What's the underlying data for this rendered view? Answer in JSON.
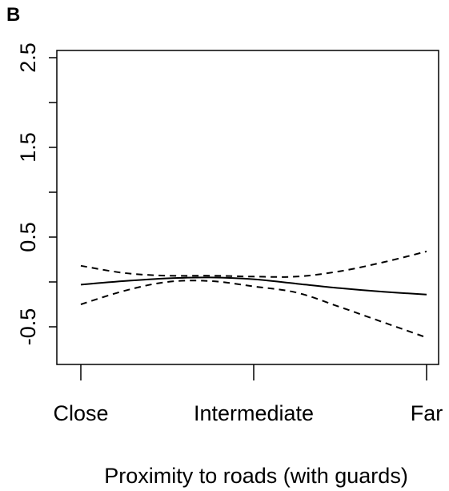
{
  "panel_label": "B",
  "chart_data": {
    "type": "line",
    "title": "",
    "xlabel": "Proximity to roads (with guards)",
    "ylabel": "",
    "xlim": [
      0,
      2
    ],
    "ylim": [
      -1,
      2.5
    ],
    "grid": false,
    "x_ticks": [
      {
        "value": 0,
        "label": "Close"
      },
      {
        "value": 1,
        "label": "Intermediate"
      },
      {
        "value": 2,
        "label": "Far"
      }
    ],
    "y_ticks": [
      {
        "value": -0.5,
        "label": "-0.5"
      },
      {
        "value": 0,
        "label": ""
      },
      {
        "value": 0.5,
        "label": "0.5"
      },
      {
        "value": 1,
        "label": ""
      },
      {
        "value": 1.5,
        "label": "1.5"
      },
      {
        "value": 2,
        "label": ""
      },
      {
        "value": 2.5,
        "label": "2.5"
      }
    ],
    "series": [
      {
        "style": "solid",
        "x": [
          0,
          0.25,
          0.5,
          0.75,
          1,
          1.25,
          1.5,
          1.75,
          2
        ],
        "y": [
          -0.03,
          0.01,
          0.04,
          0.05,
          0.03,
          -0.02,
          -0.07,
          -0.11,
          -0.14
        ]
      },
      {
        "style": "dashed",
        "x": [
          0,
          0.25,
          0.5,
          0.75,
          1,
          1.25,
          1.5,
          1.75,
          2
        ],
        "y": [
          0.18,
          0.1,
          0.07,
          0.07,
          0.06,
          0.06,
          0.12,
          0.22,
          0.34
        ]
      },
      {
        "style": "dashed",
        "x": [
          0,
          0.25,
          0.5,
          0.75,
          1,
          1.25,
          1.5,
          1.75,
          2
        ],
        "y": [
          -0.25,
          -0.1,
          0,
          0.01,
          -0.05,
          -0.12,
          -0.28,
          -0.45,
          -0.62
        ]
      }
    ]
  }
}
